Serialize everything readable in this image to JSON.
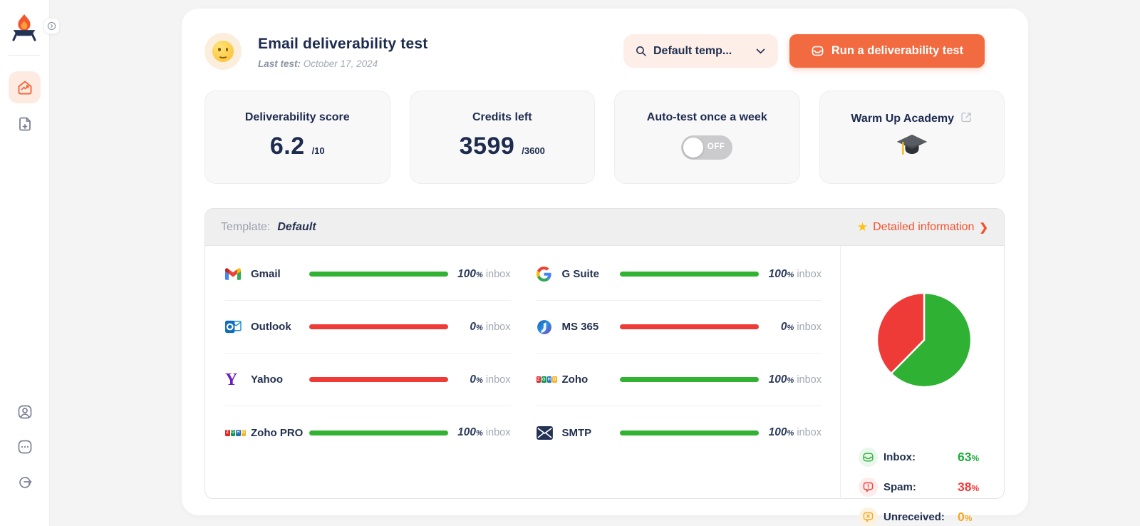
{
  "sidebar": {
    "logo_name": "campfire-logo",
    "nav": [
      {
        "id": "dashboard",
        "icon": "home-chart-icon",
        "active": true
      },
      {
        "id": "new-test",
        "icon": "file-plus-icon",
        "active": false
      }
    ],
    "nav_bottom": [
      {
        "id": "account",
        "icon": "user-icon"
      },
      {
        "id": "more",
        "icon": "ellipsis-icon"
      },
      {
        "id": "logout",
        "icon": "logout-icon"
      }
    ]
  },
  "header": {
    "title": "Email deliverability test",
    "last_test_label": "Last test:",
    "last_test_value": "October 17, 2024",
    "template_dropdown": {
      "value": "Default temp...",
      "icon": "search-icon",
      "chevron": "chevron-down-icon"
    },
    "run_button": {
      "label": "Run a deliverability test",
      "icon": "inbox-icon"
    }
  },
  "stats": {
    "score": {
      "title": "Deliverability score",
      "value": "6.2",
      "max": "/10"
    },
    "credits": {
      "title": "Credits left",
      "value": "3599",
      "max": "/3600"
    },
    "autotest": {
      "title": "Auto-test once a week",
      "toggle_state": "OFF"
    },
    "academy": {
      "title": "Warm Up Academy"
    }
  },
  "panel": {
    "template_label": "Template:",
    "template_value": "Default",
    "star": "★",
    "detail_link": "Detailed information",
    "chevron": "❯",
    "unit": "inbox",
    "providers_left": [
      {
        "name": "Gmail",
        "icon": "gmail-icon",
        "percent": 100
      },
      {
        "name": "Outlook",
        "icon": "outlook-icon",
        "percent": 0
      },
      {
        "name": "Yahoo",
        "icon": "yahoo-icon",
        "percent": 0
      },
      {
        "name": "Zoho PRO",
        "icon": "zoho-icon",
        "percent": 100
      }
    ],
    "providers_right": [
      {
        "name": "G Suite",
        "icon": "gsuite-icon",
        "percent": 100
      },
      {
        "name": "MS 365",
        "icon": "ms365-icon",
        "percent": 0
      },
      {
        "name": "Zoho",
        "icon": "zoho-icon",
        "percent": 100
      },
      {
        "name": "SMTP",
        "icon": "smtp-icon",
        "percent": 100
      }
    ],
    "summary": [
      {
        "label": "Inbox:",
        "value": "63",
        "icon": "inbox-icon",
        "color": "#1fae3e",
        "bg": "#e9f7ec",
        "ico_color": "#2fb133"
      },
      {
        "label": "Spam:",
        "value": "38",
        "icon": "spam-icon",
        "color": "#f43b3b",
        "bg": "#fdeceb",
        "ico_color": "#f0403c"
      },
      {
        "label": "Unreceived:",
        "value": "0",
        "icon": "unreceived-icon",
        "color": "#f7a823",
        "bg": "#fdf2e0",
        "ico_color": "#f7a823"
      }
    ]
  },
  "chart_data": {
    "type": "pie",
    "title": "Deliverability result share",
    "labels": [
      "Inbox",
      "Spam",
      "Unreceived"
    ],
    "values": [
      63,
      38,
      0
    ],
    "colors": [
      "#2fb133",
      "#ef3b37",
      "#f7a823"
    ],
    "legend_position": "below"
  },
  "colors": {
    "accent_orange": "#f26a40",
    "bar_green": "#32b233",
    "bar_red": "#ef3b37",
    "navy_text": "#1d2b4f",
    "link_red": "#f4512c",
    "star_yellow": "#fec107"
  }
}
